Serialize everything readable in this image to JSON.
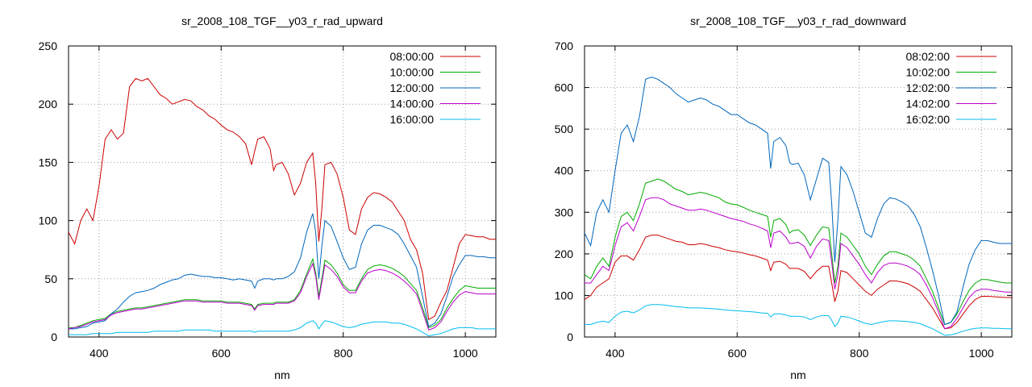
{
  "chart_data": [
    {
      "type": "line",
      "title": "sr_2008_108_TGF__y03_r_rad_upward",
      "xlabel": "nm",
      "ylabel": "",
      "xlim": [
        350,
        1050
      ],
      "ylim": [
        0,
        250
      ],
      "xticks": [
        400,
        600,
        800,
        1000
      ],
      "yticks": [
        0,
        50,
        100,
        150,
        200,
        250
      ],
      "grid": true,
      "legend_position": "top-right",
      "x": [
        350,
        360,
        370,
        380,
        390,
        400,
        410,
        420,
        430,
        440,
        450,
        460,
        470,
        480,
        490,
        500,
        510,
        520,
        530,
        540,
        550,
        560,
        570,
        580,
        590,
        600,
        610,
        620,
        630,
        640,
        650,
        655,
        660,
        670,
        680,
        686,
        690,
        700,
        710,
        720,
        730,
        740,
        750,
        755,
        760,
        765,
        770,
        780,
        790,
        800,
        810,
        820,
        830,
        840,
        850,
        860,
        870,
        880,
        890,
        900,
        910,
        920,
        930,
        940,
        950,
        960,
        970,
        980,
        990,
        1000,
        1010,
        1020,
        1030,
        1040,
        1050
      ],
      "series": [
        {
          "name": "08:00:00",
          "color": "#cc0000",
          "values": [
            90,
            80,
            100,
            110,
            100,
            130,
            170,
            178,
            170,
            175,
            215,
            222,
            220,
            222,
            215,
            208,
            205,
            200,
            202,
            204,
            203,
            198,
            195,
            190,
            187,
            182,
            178,
            176,
            172,
            166,
            148,
            160,
            170,
            172,
            162,
            143,
            148,
            150,
            140,
            122,
            132,
            150,
            158,
            132,
            82,
            110,
            148,
            150,
            140,
            120,
            92,
            88,
            110,
            120,
            124,
            123,
            120,
            116,
            108,
            100,
            84,
            75,
            55,
            15,
            18,
            30,
            40,
            60,
            80,
            88,
            87,
            86,
            86,
            84,
            84
          ]
        },
        {
          "name": "10:00:00",
          "color": "#00aa00",
          "values": [
            8,
            8,
            10,
            12,
            14,
            15,
            16,
            20,
            22,
            23,
            24,
            25,
            25,
            26,
            27,
            28,
            29,
            30,
            31,
            32,
            32,
            32,
            31,
            31,
            31,
            31,
            30,
            30,
            30,
            29,
            28,
            24,
            28,
            29,
            29,
            29,
            30,
            30,
            30,
            32,
            40,
            54,
            67,
            55,
            35,
            50,
            66,
            62,
            55,
            45,
            40,
            40,
            50,
            58,
            61,
            62,
            61,
            59,
            56,
            52,
            46,
            40,
            25,
            8,
            10,
            15,
            25,
            33,
            40,
            44,
            43,
            42,
            42,
            42,
            42
          ]
        },
        {
          "name": "12:00:00",
          "color": "#0066bb",
          "values": [
            7,
            7,
            8,
            9,
            12,
            13,
            14,
            20,
            24,
            30,
            35,
            38,
            39,
            40,
            42,
            45,
            47,
            49,
            50,
            53,
            54,
            53,
            52,
            52,
            51,
            51,
            50,
            49,
            50,
            49,
            48,
            42,
            48,
            50,
            50,
            49,
            50,
            50,
            52,
            56,
            68,
            90,
            106,
            90,
            50,
            78,
            100,
            95,
            82,
            68,
            58,
            60,
            80,
            92,
            96,
            96,
            94,
            92,
            88,
            80,
            70,
            60,
            35,
            9,
            12,
            20,
            35,
            52,
            62,
            70,
            70,
            69,
            69,
            68,
            68
          ]
        },
        {
          "name": "14:00:00",
          "color": "#bb00cc",
          "values": [
            7,
            8,
            9,
            11,
            13,
            14,
            15,
            19,
            21,
            22,
            23,
            24,
            24,
            25,
            26,
            27,
            28,
            29,
            30,
            31,
            31,
            31,
            30,
            30,
            30,
            30,
            29,
            29,
            29,
            28,
            27,
            23,
            27,
            28,
            28,
            28,
            29,
            29,
            29,
            31,
            38,
            52,
            63,
            52,
            32,
            47,
            62,
            58,
            52,
            43,
            38,
            38,
            48,
            55,
            57,
            58,
            57,
            55,
            52,
            48,
            43,
            37,
            22,
            6,
            8,
            13,
            22,
            30,
            36,
            39,
            38,
            37,
            37,
            37,
            37
          ]
        },
        {
          "name": "16:00:00",
          "color": "#00bbee",
          "values": [
            2,
            2,
            2,
            2,
            3,
            3,
            3,
            3,
            4,
            4,
            4,
            4,
            4,
            4,
            5,
            5,
            5,
            5,
            5,
            6,
            6,
            6,
            6,
            6,
            5,
            5,
            5,
            5,
            5,
            5,
            5,
            4,
            5,
            5,
            5,
            5,
            5,
            5,
            5,
            6,
            8,
            12,
            14,
            12,
            7,
            11,
            14,
            13,
            11,
            9,
            8,
            9,
            11,
            12,
            13,
            13,
            13,
            12,
            12,
            11,
            9,
            7,
            4,
            1,
            2,
            3,
            5,
            7,
            8,
            8,
            8,
            7,
            7,
            7,
            7
          ]
        }
      ]
    },
    {
      "type": "line",
      "title": "sr_2008_108_TGF__y03_r_rad_downward",
      "xlabel": "nm",
      "ylabel": "",
      "xlim": [
        350,
        1050
      ],
      "ylim": [
        0,
        700
      ],
      "xticks": [
        400,
        600,
        800,
        1000
      ],
      "yticks": [
        0,
        100,
        200,
        300,
        400,
        500,
        600,
        700
      ],
      "grid": true,
      "legend_position": "top-right",
      "x": [
        350,
        360,
        370,
        380,
        390,
        400,
        410,
        420,
        430,
        440,
        450,
        460,
        470,
        480,
        490,
        500,
        510,
        520,
        530,
        540,
        550,
        560,
        570,
        580,
        590,
        600,
        610,
        620,
        630,
        640,
        650,
        655,
        660,
        670,
        680,
        686,
        690,
        700,
        710,
        720,
        730,
        740,
        750,
        755,
        760,
        765,
        770,
        780,
        790,
        800,
        810,
        820,
        830,
        840,
        850,
        860,
        870,
        880,
        890,
        900,
        910,
        920,
        930,
        940,
        950,
        960,
        970,
        980,
        990,
        1000,
        1010,
        1020,
        1030,
        1040,
        1050
      ],
      "series": [
        {
          "name": "08:02:00",
          "color": "#cc0000",
          "values": [
            90,
            100,
            120,
            130,
            140,
            180,
            195,
            195,
            185,
            210,
            240,
            245,
            245,
            240,
            235,
            230,
            228,
            222,
            222,
            225,
            222,
            218,
            215,
            210,
            207,
            205,
            202,
            198,
            195,
            190,
            185,
            160,
            180,
            182,
            175,
            165,
            165,
            165,
            158,
            140,
            158,
            170,
            170,
            130,
            85,
            110,
            160,
            155,
            140,
            125,
            110,
            100,
            115,
            125,
            135,
            135,
            132,
            128,
            120,
            110,
            90,
            70,
            45,
            20,
            22,
            35,
            55,
            75,
            90,
            98,
            98,
            97,
            96,
            95,
            95
          ]
        },
        {
          "name": "10:02:00",
          "color": "#00aa00",
          "values": [
            150,
            140,
            170,
            190,
            170,
            240,
            290,
            300,
            280,
            320,
            370,
            375,
            380,
            375,
            365,
            355,
            350,
            342,
            345,
            348,
            345,
            340,
            335,
            325,
            320,
            318,
            312,
            305,
            300,
            295,
            290,
            240,
            280,
            285,
            270,
            250,
            255,
            258,
            245,
            220,
            245,
            265,
            262,
            200,
            130,
            170,
            250,
            240,
            220,
            200,
            170,
            150,
            175,
            195,
            205,
            205,
            200,
            195,
            185,
            170,
            140,
            110,
            70,
            30,
            35,
            55,
            85,
            112,
            130,
            138,
            138,
            135,
            132,
            130,
            130
          ]
        },
        {
          "name": "12:02:00",
          "color": "#0066bb",
          "values": [
            250,
            220,
            300,
            330,
            300,
            400,
            490,
            510,
            470,
            530,
            620,
            625,
            620,
            610,
            600,
            585,
            575,
            565,
            570,
            575,
            570,
            560,
            555,
            545,
            535,
            535,
            525,
            515,
            510,
            500,
            490,
            405,
            470,
            480,
            460,
            420,
            415,
            418,
            390,
            330,
            380,
            430,
            420,
            320,
            180,
            280,
            410,
            390,
            350,
            300,
            250,
            240,
            285,
            320,
            335,
            332,
            325,
            315,
            295,
            265,
            215,
            160,
            100,
            30,
            35,
            60,
            120,
            175,
            210,
            232,
            232,
            228,
            225,
            225,
            225
          ]
        },
        {
          "name": "14:02:00",
          "color": "#bb00cc",
          "values": [
            130,
            130,
            150,
            170,
            160,
            220,
            265,
            275,
            255,
            290,
            330,
            335,
            335,
            330,
            320,
            315,
            310,
            305,
            305,
            308,
            305,
            300,
            295,
            290,
            285,
            282,
            278,
            272,
            268,
            262,
            255,
            215,
            250,
            255,
            240,
            225,
            225,
            228,
            218,
            190,
            218,
            236,
            232,
            180,
            115,
            150,
            225,
            215,
            195,
            175,
            150,
            130,
            155,
            172,
            178,
            178,
            175,
            170,
            162,
            150,
            125,
            95,
            60,
            20,
            25,
            45,
            70,
            95,
            110,
            115,
            115,
            112,
            110,
            108,
            108
          ]
        },
        {
          "name": "16:02:00",
          "color": "#00bbee",
          "values": [
            30,
            30,
            35,
            38,
            35,
            50,
            60,
            62,
            58,
            65,
            75,
            78,
            78,
            77,
            75,
            73,
            72,
            70,
            70,
            70,
            69,
            68,
            67,
            65,
            64,
            63,
            62,
            61,
            60,
            58,
            57,
            48,
            55,
            56,
            53,
            50,
            50,
            50,
            48,
            42,
            48,
            52,
            51,
            40,
            25,
            33,
            50,
            48,
            44,
            38,
            33,
            30,
            34,
            37,
            39,
            39,
            38,
            37,
            35,
            32,
            26,
            20,
            12,
            4,
            5,
            9,
            14,
            18,
            21,
            22,
            22,
            21,
            21,
            20,
            20
          ]
        }
      ]
    }
  ]
}
